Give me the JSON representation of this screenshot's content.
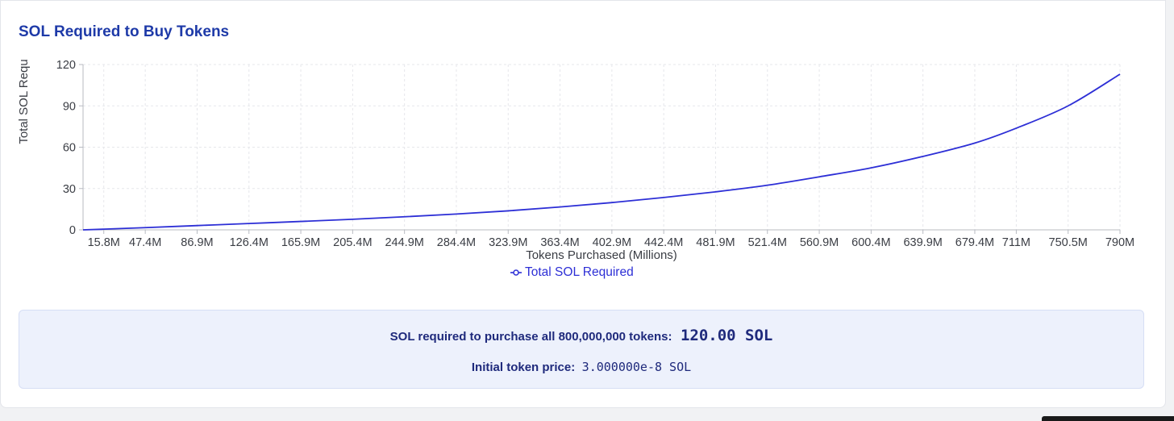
{
  "chart_data": {
    "type": "line",
    "title": "SOL Required to Buy Tokens",
    "xlabel": "Tokens Purchased (Millions)",
    "ylabel": "Total SOL Requ",
    "x_tick_labels": [
      "15.8M",
      "47.4M",
      "86.9M",
      "126.4M",
      "165.9M",
      "205.4M",
      "244.9M",
      "284.4M",
      "323.9M",
      "363.4M",
      "402.9M",
      "442.4M",
      "481.9M",
      "521.4M",
      "560.9M",
      "600.4M",
      "639.9M",
      "679.4M",
      "711M",
      "750.5M",
      "790M"
    ],
    "x_ticks": [
      15.8,
      47.4,
      86.9,
      126.4,
      165.9,
      205.4,
      244.9,
      284.4,
      323.9,
      363.4,
      402.9,
      442.4,
      481.9,
      521.4,
      560.9,
      600.4,
      639.9,
      679.4,
      711,
      750.5,
      790
    ],
    "y_ticks": [
      0,
      30,
      60,
      90,
      120
    ],
    "xlim": [
      0,
      790
    ],
    "ylim": [
      0,
      120
    ],
    "grid": true,
    "legend_position": "bottom-center",
    "series": [
      {
        "name": "Total SOL Required",
        "color": "#2d2fd6",
        "x": [
          0,
          15.8,
          47.4,
          86.9,
          126.4,
          165.9,
          205.4,
          244.9,
          284.4,
          323.9,
          363.4,
          402.9,
          442.4,
          481.9,
          521.4,
          560.9,
          600.4,
          639.9,
          679.4,
          711,
          750.5,
          790
        ],
        "y": [
          0,
          0.5,
          1.6,
          3.1,
          4.6,
          6.1,
          7.7,
          9.5,
          11.5,
          13.8,
          16.6,
          19.8,
          23.5,
          27.6,
          32.4,
          38.5,
          45.0,
          53.3,
          63.0,
          73.8,
          90.0,
          113.0
        ]
      }
    ]
  },
  "summary": {
    "total_label": "SOL required to purchase all 800,000,000 tokens:",
    "total_value": "120.00 SOL",
    "price_label": "Initial token price:",
    "price_value": "3.000000e-8 SOL"
  }
}
